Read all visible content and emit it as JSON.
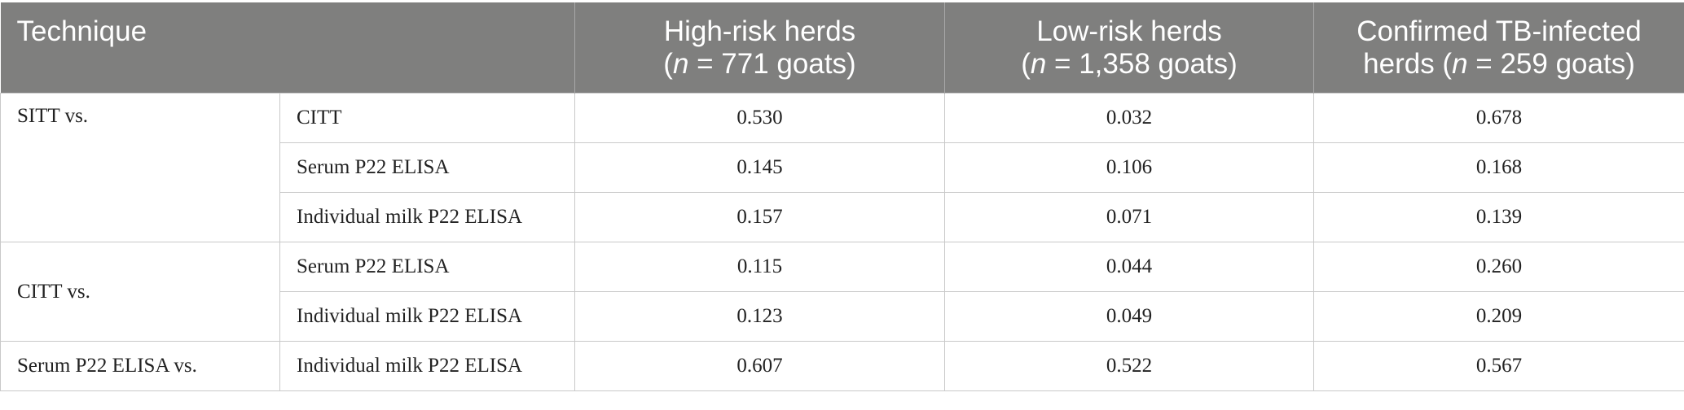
{
  "header": {
    "technique": "Technique",
    "columns": [
      {
        "line1": "High-risk herds",
        "line2_before": "(",
        "line2_italic": "n",
        "line2_after": " = 771 goats)"
      },
      {
        "line1": "Low-risk herds",
        "line2_before": "(",
        "line2_italic": "n",
        "line2_after": " = 1,358 goats)"
      },
      {
        "line1": "Confirmed TB-infected",
        "line2_before": "herds (",
        "line2_italic": "n",
        "line2_after": " = 259 goats)"
      }
    ]
  },
  "groups": [
    {
      "label": "SITT vs.",
      "rows": [
        {
          "comparison": "CITT",
          "values": [
            "0.530",
            "0.032",
            "0.678"
          ]
        },
        {
          "comparison": "Serum P22 ELISA",
          "values": [
            "0.145",
            "0.106",
            "0.168"
          ]
        },
        {
          "comparison": "Individual milk P22 ELISA",
          "values": [
            "0.157",
            "0.071",
            "0.139"
          ]
        }
      ]
    },
    {
      "label": "CITT vs.",
      "rows": [
        {
          "comparison": "Serum P22 ELISA",
          "values": [
            "0.115",
            "0.044",
            "0.260"
          ]
        },
        {
          "comparison": "Individual milk P22 ELISA",
          "values": [
            "0.123",
            "0.049",
            "0.209"
          ]
        }
      ]
    },
    {
      "label": "Serum P22 ELISA vs.",
      "rows": [
        {
          "comparison": "Individual milk P22 ELISA",
          "values": [
            "0.607",
            "0.522",
            "0.567"
          ]
        }
      ]
    }
  ]
}
